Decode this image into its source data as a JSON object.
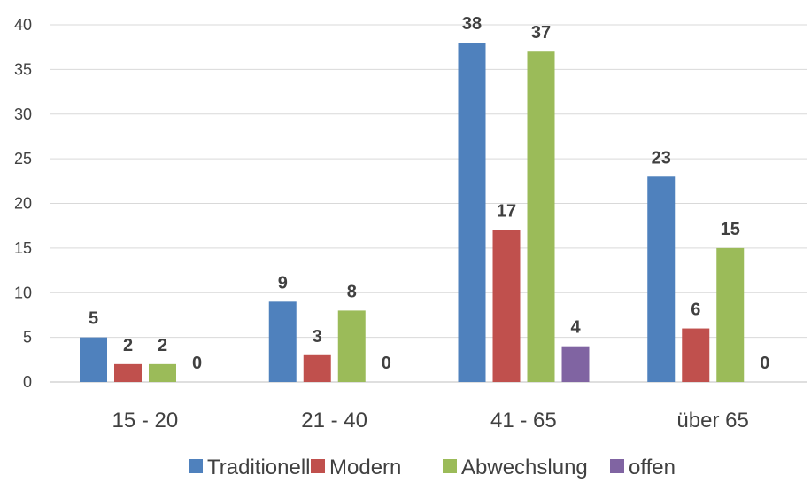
{
  "chart_data": {
    "type": "bar",
    "categories": [
      "15 - 20",
      "21 - 40",
      "41 - 65",
      "über 65"
    ],
    "series": [
      {
        "name": "Traditionell",
        "values": [
          5,
          9,
          38,
          23
        ],
        "color": "#4F81BD"
      },
      {
        "name": "Modern",
        "values": [
          2,
          3,
          17,
          6
        ],
        "color": "#C0504D"
      },
      {
        "name": "Abwechslung",
        "values": [
          2,
          8,
          37,
          15
        ],
        "color": "#9BBB59"
      },
      {
        "name": "offen",
        "values": [
          0,
          0,
          4,
          0
        ],
        "color": "#8064A2"
      }
    ],
    "ylim": [
      0,
      40
    ],
    "yticks": [
      0,
      5,
      10,
      15,
      20,
      25,
      30,
      35,
      40
    ],
    "grid": true,
    "legend_position": "bottom",
    "data_labels": true
  }
}
